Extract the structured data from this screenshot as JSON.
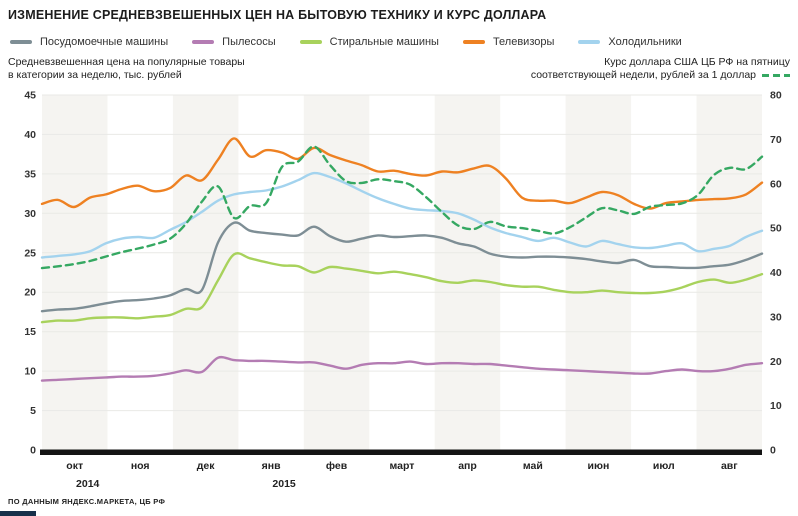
{
  "title": "ИЗМЕНЕНИЕ СРЕДНЕВЗВЕШЕННЫХ ЦЕН НА БЫТОВУЮ ТЕХНИКУ И КУРС ДОЛЛАРА",
  "footer": "ПО ДАННЫМ ЯНДЕКС.МАРКЕТА, ЦБ РФ",
  "axis_note_left": {
    "line1": "Средневзвешенная цена на популярные товары",
    "line2": "в категории за неделю, тыс. рублей"
  },
  "axis_note_right": {
    "line1": "Курс доллара США ЦБ РФ на пятницу",
    "line2": "соответствующей недели, рублей за 1 доллар"
  },
  "legend": {
    "items": [
      {
        "label": "Посудомоечные машины",
        "color": "#7e8e95"
      },
      {
        "label": "Пылесосы",
        "color": "#b47cb3"
      },
      {
        "label": "Стиральные машины",
        "color": "#a8d25c"
      },
      {
        "label": "Телевизоры",
        "color": "#ee8122"
      },
      {
        "label": "Холодильники",
        "color": "#a3d3ee"
      }
    ]
  },
  "colors": {
    "band": "#f5f4f1",
    "grid": "#e9e9e6",
    "axis_bar": "#141414",
    "tick_text": "#333333",
    "month_text": "#222222",
    "usd": "#35a862"
  },
  "chart_data": {
    "type": "line",
    "title": "Изменение средневзвешенных цен на бытовую технику и курс доллара",
    "x_unit": "weeks, Oct 2014 – Aug 2015",
    "months": [
      "окт",
      "ноя",
      "дек",
      "янв",
      "фев",
      "март",
      "апр",
      "май",
      "июн",
      "июл",
      "авг"
    ],
    "years": [
      {
        "label": "2014",
        "month_index": 0
      },
      {
        "label": "2015",
        "month_index": 3
      }
    ],
    "left_axis": {
      "label": "тыс. рублей",
      "min": 0,
      "max": 45,
      "tick_step": 5
    },
    "right_axis": {
      "label": "рублей за 1 доллар",
      "min": 0,
      "max": 80,
      "tick_step": 10
    },
    "grid": "horizontal, alternating month bands",
    "legend_position": "top",
    "series": [
      {
        "name": "Посудомоечные машины",
        "axis": "left",
        "dashed": false,
        "color": "#7e8e95",
        "values": [
          17.6,
          17.8,
          17.9,
          18.2,
          18.6,
          18.9,
          19.0,
          19.2,
          19.6,
          20.4,
          20.3,
          26.3,
          28.8,
          27.8,
          27.5,
          27.3,
          27.2,
          28.3,
          27.1,
          26.4,
          26.8,
          27.2,
          27.0,
          27.1,
          27.2,
          26.9,
          26.2,
          25.8,
          24.9,
          24.5,
          24.4,
          24.5,
          24.5,
          24.4,
          24.2,
          23.9,
          23.7,
          24.1,
          23.3,
          23.2,
          23.1,
          23.1,
          23.3,
          23.5,
          24.1,
          24.9
        ]
      },
      {
        "name": "Пылесосы",
        "axis": "left",
        "dashed": false,
        "color": "#b47cb3",
        "values": [
          8.8,
          8.9,
          9.0,
          9.1,
          9.2,
          9.3,
          9.3,
          9.4,
          9.7,
          10.1,
          9.9,
          11.7,
          11.4,
          11.3,
          11.3,
          11.2,
          11.1,
          11.1,
          10.7,
          10.3,
          10.8,
          11.0,
          11.0,
          11.2,
          10.9,
          11.0,
          11.0,
          10.9,
          10.9,
          10.7,
          10.5,
          10.3,
          10.2,
          10.1,
          10.0,
          9.9,
          9.8,
          9.7,
          9.7,
          10.0,
          10.2,
          10.0,
          10.0,
          10.3,
          10.8,
          11.0
        ]
      },
      {
        "name": "Стиральные машины",
        "axis": "left",
        "dashed": false,
        "color": "#a8d25c",
        "values": [
          16.2,
          16.4,
          16.4,
          16.7,
          16.8,
          16.8,
          16.7,
          16.9,
          17.1,
          17.9,
          18.1,
          21.5,
          24.8,
          24.3,
          23.8,
          23.4,
          23.3,
          22.5,
          23.2,
          23.0,
          22.7,
          22.4,
          22.6,
          22.3,
          21.9,
          21.4,
          21.2,
          21.5,
          21.3,
          20.9,
          20.7,
          20.7,
          20.3,
          20.0,
          20.0,
          20.2,
          20.0,
          19.9,
          19.9,
          20.1,
          20.6,
          21.3,
          21.6,
          21.2,
          21.6,
          22.3
        ]
      },
      {
        "name": "Телевизоры",
        "axis": "left",
        "dashed": false,
        "color": "#ee8122",
        "values": [
          31.2,
          31.7,
          30.8,
          32.0,
          32.4,
          33.1,
          33.5,
          32.8,
          33.2,
          34.8,
          34.2,
          36.8,
          39.5,
          37.2,
          38.0,
          37.7,
          36.9,
          38.3,
          37.4,
          36.7,
          36.1,
          35.3,
          35.4,
          35.0,
          34.8,
          35.3,
          35.2,
          35.7,
          36.0,
          34.4,
          32.0,
          31.6,
          31.6,
          31.3,
          32.0,
          32.7,
          32.3,
          31.2,
          30.6,
          31.3,
          31.5,
          31.7,
          31.8,
          31.9,
          32.4,
          33.9
        ]
      },
      {
        "name": "Холодильники",
        "axis": "left",
        "dashed": false,
        "color": "#a3d3ee",
        "values": [
          24.4,
          24.6,
          24.8,
          25.2,
          26.2,
          26.8,
          27.0,
          26.9,
          27.9,
          28.9,
          30.2,
          31.6,
          32.4,
          32.7,
          32.9,
          33.4,
          34.2,
          35.1,
          34.6,
          33.8,
          32.8,
          31.9,
          31.2,
          30.6,
          30.4,
          30.3,
          30.0,
          29.2,
          28.2,
          27.5,
          27.0,
          26.5,
          26.9,
          26.3,
          25.8,
          26.5,
          26.1,
          25.7,
          25.6,
          25.9,
          26.2,
          25.2,
          25.5,
          25.9,
          27.0,
          27.8
        ]
      },
      {
        "name": "Курс доллара США",
        "axis": "right",
        "dashed": true,
        "color": "#35a862",
        "values": [
          41.0,
          41.4,
          41.9,
          42.6,
          43.6,
          44.6,
          45.4,
          46.3,
          47.6,
          51.0,
          56.0,
          59.4,
          52.3,
          55.0,
          55.6,
          63.8,
          65.0,
          68.4,
          64.2,
          60.6,
          60.2,
          61.0,
          60.6,
          59.8,
          57.0,
          53.6,
          50.6,
          49.8,
          51.4,
          50.4,
          50.0,
          49.4,
          48.8,
          50.2,
          52.4,
          54.5,
          54.0,
          53.2,
          54.8,
          55.2,
          55.6,
          57.5,
          62.0,
          63.6,
          63.3,
          66.1
        ]
      }
    ]
  }
}
